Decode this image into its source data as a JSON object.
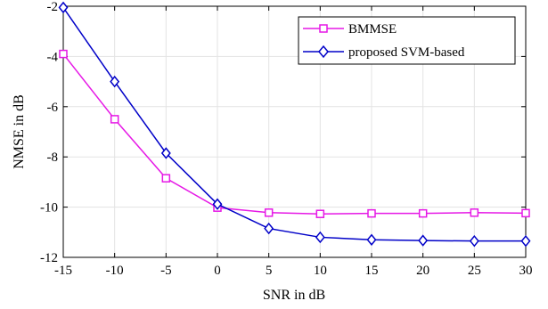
{
  "chart_data": {
    "type": "line",
    "x": [
      -15,
      -10,
      -5,
      0,
      5,
      10,
      15,
      20,
      25,
      30
    ],
    "series": [
      {
        "name": "BMMSE",
        "values": [
          -3.9,
          -6.5,
          -8.85,
          -10.02,
          -10.22,
          -10.27,
          -10.25,
          -10.25,
          -10.22,
          -10.24
        ],
        "color": "#e619e6",
        "marker": "square"
      },
      {
        "name": "proposed SVM-based",
        "values": [
          -2.05,
          -5.0,
          -7.85,
          -9.88,
          -10.85,
          -11.2,
          -11.3,
          -11.33,
          -11.35,
          -11.35
        ],
        "color": "#0000c8",
        "marker": "diamond"
      }
    ],
    "xlabel": "SNR in dB",
    "ylabel": "NMSE in dB",
    "xlim": [
      -15,
      30
    ],
    "ylim": [
      -12,
      -2
    ],
    "xticks": [
      -15,
      -10,
      -5,
      0,
      5,
      10,
      15,
      20,
      25,
      30
    ],
    "yticks": [
      -12,
      -10,
      -8,
      -6,
      -4,
      -2
    ],
    "xtick_labels": [
      "-15",
      "-10",
      "-5",
      "0",
      "5",
      "10",
      "15",
      "20",
      "25",
      "30"
    ],
    "ytick_labels": [
      "-12",
      "-10",
      "-8",
      "-6",
      "-4",
      "-2"
    ],
    "grid": true,
    "legend_position": "top-right"
  }
}
